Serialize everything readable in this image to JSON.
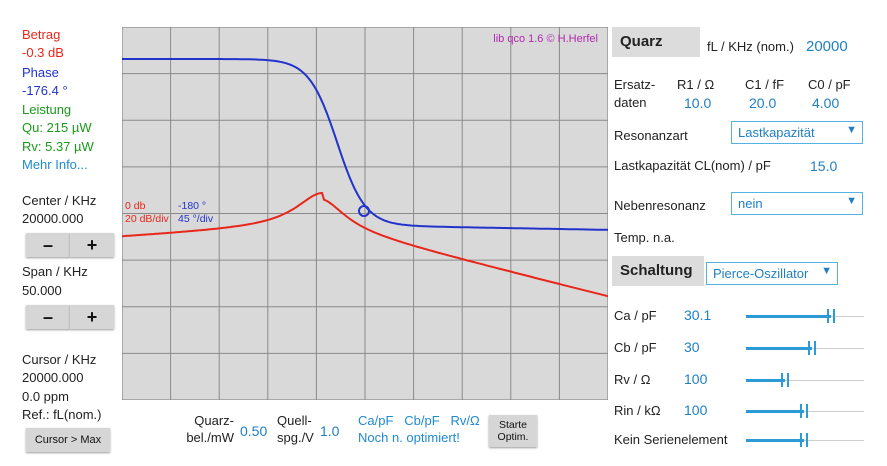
{
  "left": {
    "betrag_label": "Betrag",
    "betrag_value": "-0.3 dB",
    "phase_label": "Phase",
    "phase_value": "-176.4 °",
    "leistung_label": "Leistung",
    "qu": "Qu: 215 µW",
    "rv": "Rv: 5.37 µW",
    "mehr_info": "Mehr Info...",
    "center_label": "Center / KHz",
    "center_value": "20000.000",
    "span_label": "Span / KHz",
    "span_value": "50.000",
    "minus": "–",
    "plus": "+",
    "cursor_label": "Cursor / KHz",
    "cursor_value": "20000.000",
    "cursor_ppm": "0.0 ppm",
    "ref": "Ref.: fL(nom.)",
    "cursor_max_btn": "Cursor > Max"
  },
  "plot": {
    "watermark": "lib qco 1.6  © H.Herfel",
    "ref_db": "0 db",
    "scale_db": "20 dB/div",
    "ref_deg": "-180 °",
    "scale_deg": "45 °/div",
    "colors": {
      "amplitude": "#e8261a",
      "phase": "#2233cc",
      "grid_bg": "#d9d9d9"
    }
  },
  "bottom": {
    "quarz_bel_label1": "Quarz-",
    "quarz_bel_label2": "bel./mW",
    "quarz_bel_value": "0.50",
    "quell_label1": "Quell-",
    "quell_label2": "spg./V",
    "quell_value": "1.0",
    "opt_params": "Ca/pF   Cb/pF   Rv/Ω",
    "opt_status": "Noch n. optimiert!",
    "starte_btn_1": "Starte",
    "starte_btn_2": "Optim."
  },
  "quarz": {
    "title": "Quarz",
    "fl_label": "fL / KHz (nom.)",
    "fl_value": "20000",
    "ersatz_label1": "Ersatz-",
    "ersatz_label2": "daten",
    "r1_label": "R1 / Ω",
    "c1_label": "C1 / fF",
    "c0_label": "C0 / pF",
    "r1_value": "10.0",
    "c1_value": "20.0",
    "c0_value": "4.00",
    "resonanzart_label": "Resonanzart",
    "resonanzart_value": "Lastkapazität",
    "lastkap_label": "Lastkapazität CL(nom) / pF",
    "lastkap_value": "15.0",
    "nebenresonanz_label": "Nebenresonanz",
    "nebenresonanz_value": "nein",
    "temp": "Temp. n.a."
  },
  "schaltung": {
    "title": "Schaltung",
    "type_value": "Pierce-Oszillator",
    "rows": [
      {
        "label": "Ca / pF",
        "value": "30.1",
        "fill": 0.72
      },
      {
        "label": "Cb / pF",
        "value": "30",
        "fill": 0.56
      },
      {
        "label": "Rv / Ω",
        "value": "100",
        "fill": 0.33
      },
      {
        "label": "Rin / kΩ",
        "value": "100",
        "fill": 0.49
      },
      {
        "label": "Kein Serienelement",
        "value": "",
        "fill": 0.49
      }
    ]
  }
}
